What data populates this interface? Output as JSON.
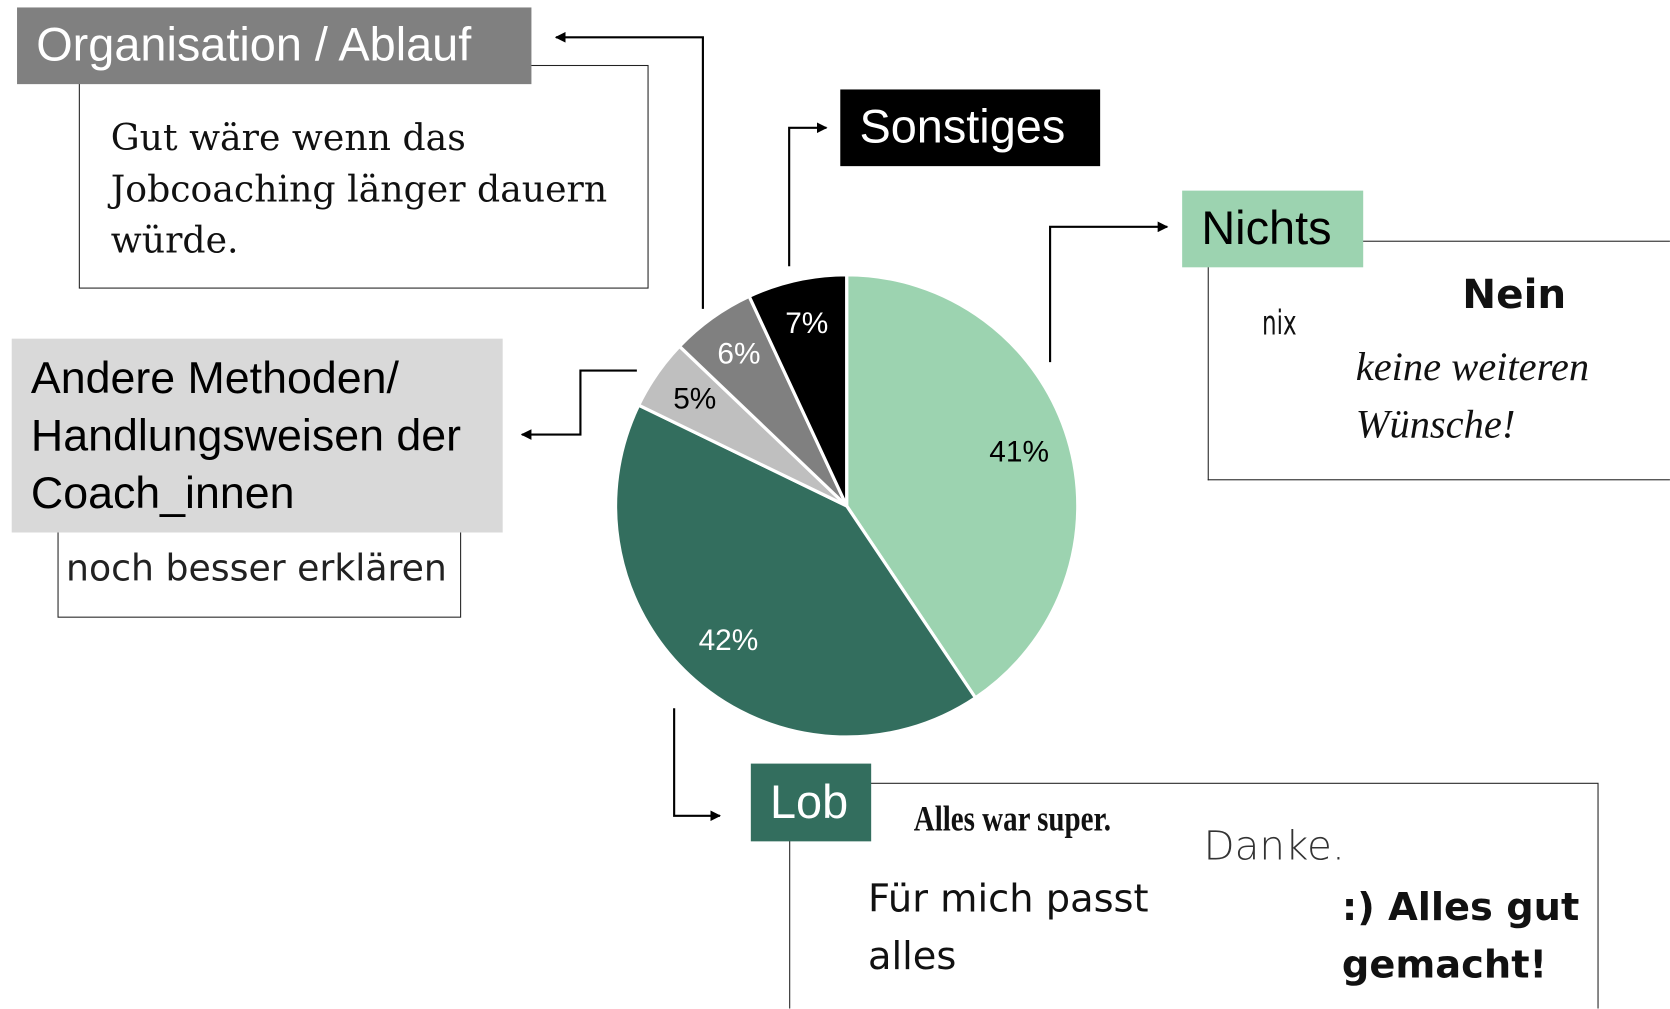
{
  "chart_data": {
    "type": "pie",
    "categories": [
      "Nichts",
      "Lob",
      "Andere Methoden/ Handlungsweisen der Coach_innen",
      "Organisation / Ablauf",
      "Sonstiges"
    ],
    "values": [
      41,
      42,
      5,
      6,
      7
    ],
    "value_labels": [
      "41%",
      "42%",
      "5%",
      "6%",
      "7%"
    ],
    "colors": [
      "#9cd3b0",
      "#336e5e",
      "#bfbfbf",
      "#808080",
      "#000000"
    ],
    "comments": [
      [
        "nix",
        "Nein",
        "keine weiteren Wünsche!"
      ],
      [
        "Alles war super.",
        "Danke.",
        "Für mich passt alles",
        ":) Alles gut gemacht!"
      ],
      [
        "noch besser erklären"
      ],
      [
        "Gut wäre wenn das Jobcoaching länger dauern würde."
      ],
      []
    ]
  }
}
